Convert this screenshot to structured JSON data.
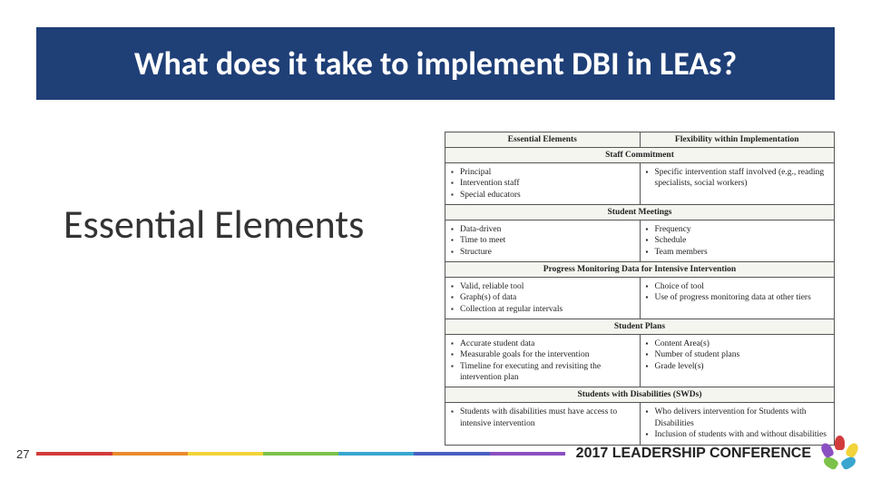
{
  "title": "What does it take to implement DBI in LEAs?",
  "subtitle": "Essential Elements",
  "page_number": "27",
  "conference_label": "2017 LEADERSHIP CONFERENCE",
  "rainbow_colors": [
    "#d23b3b",
    "#e88b2e",
    "#f2d33a",
    "#7cc24a",
    "#3aa6d0",
    "#4a5fc1",
    "#8a4fc1"
  ],
  "logo_colors": [
    "#d23b3b",
    "#f2d33a",
    "#3aa6d0",
    "#7cc24a",
    "#8a4fc1"
  ],
  "table": {
    "columns": [
      "Essential Elements",
      "Flexibility within Implementation"
    ],
    "sections": [
      {
        "title": "Staff Commitment",
        "left": [
          "Principal",
          "Intervention staff",
          "Special educators"
        ],
        "right": [
          "Specific intervention staff involved (e.g., reading specialists, social workers)"
        ]
      },
      {
        "title": "Student Meetings",
        "left": [
          "Data-driven",
          "Time to meet",
          "Structure"
        ],
        "right": [
          "Frequency",
          "Schedule",
          "Team members"
        ]
      },
      {
        "title": "Progress Monitoring Data for Intensive Intervention",
        "left": [
          "Valid, reliable tool",
          "Graph(s) of data",
          "Collection at regular intervals"
        ],
        "right": [
          "Choice of tool",
          "Use of progress monitoring data at other tiers"
        ]
      },
      {
        "title": "Student Plans",
        "left": [
          "Accurate student data",
          "Measurable goals for the intervention",
          "Timeline for executing and revisiting the intervention plan"
        ],
        "right": [
          "Content Area(s)",
          "Number of student plans",
          "Grade level(s)"
        ]
      },
      {
        "title": "Students with Disabilities (SWDs)",
        "left": [
          "Students with disabilities must have access to intensive intervention"
        ],
        "right": [
          "Who delivers intervention for Students with Disabilities",
          "Inclusion of students with and without disabilities"
        ]
      }
    ]
  }
}
